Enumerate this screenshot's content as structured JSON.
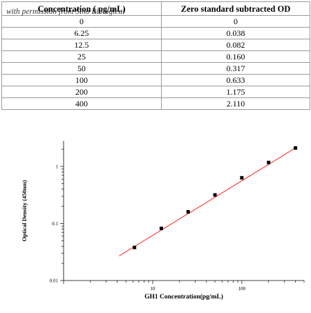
{
  "table": {
    "headers": [
      "Concentration ( pg/mL)",
      "Zero standard subtracted OD"
    ],
    "watermark": "with permission from Sino Biological",
    "rows": [
      [
        "0",
        "0"
      ],
      [
        "6.25",
        "0.038"
      ],
      [
        "12.5",
        "0.082"
      ],
      [
        "25",
        "0.160"
      ],
      [
        "50",
        "0.317"
      ],
      [
        "100",
        "0.633"
      ],
      [
        "200",
        "1.175"
      ],
      [
        "400",
        "2.110"
      ]
    ]
  },
  "chart_data": {
    "type": "scatter",
    "xlabel": "GH1  Concentration(pg/mL)",
    "ylabel": "Optical Density (450nm)",
    "x_scale": "log",
    "y_scale": "log",
    "xlim": [
      1,
      500
    ],
    "ylim": [
      0.01,
      2.8
    ],
    "x_ticks": [
      10,
      100
    ],
    "x_tick_labels": [
      "10",
      "100"
    ],
    "y_ticks": [
      0.01,
      0.1,
      1
    ],
    "y_tick_labels": [
      "0.01",
      "0.1",
      "1"
    ],
    "grid": false,
    "series": [
      {
        "x": [
          6.25,
          12.5,
          25,
          50,
          100,
          200,
          400
        ],
        "y": [
          0.038,
          0.082,
          0.16,
          0.317,
          0.633,
          1.175,
          2.11
        ],
        "color": "#000000"
      }
    ],
    "fit_line": {
      "x": [
        4.2,
        400
      ],
      "y": [
        0.027,
        2.11
      ],
      "color": "#ff0000"
    }
  }
}
